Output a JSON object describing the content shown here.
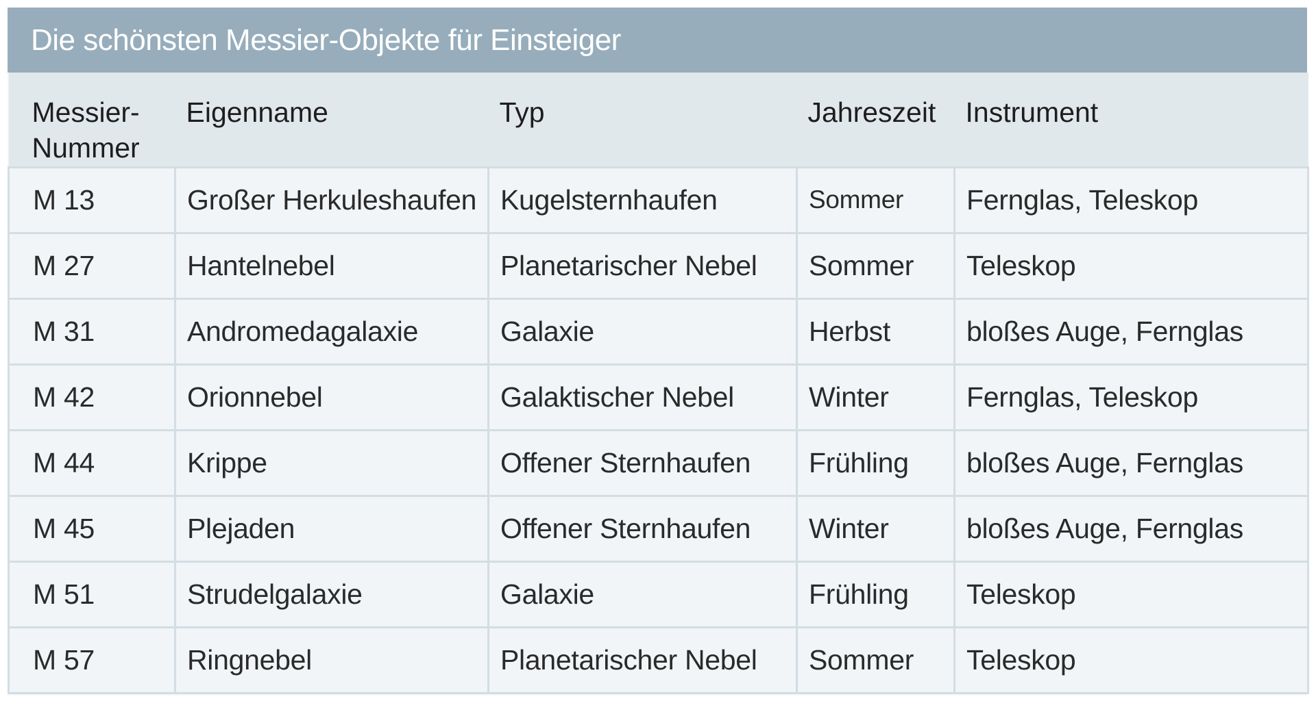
{
  "title": "Die schönsten Messier-Objekte für Einsteiger",
  "columns": [
    "Messier-\nNummer",
    "Eigenname",
    "Typ",
    "Jahreszeit",
    "Instrument"
  ],
  "rows": [
    [
      "M 13",
      "Großer Herkuleshaufen",
      "Kugelsternhaufen",
      "Sommer",
      "Fernglas, Teleskop"
    ],
    [
      "M 27",
      "Hantelnebel",
      "Planetarischer Nebel",
      "Sommer",
      "Teleskop"
    ],
    [
      "M 31",
      "Andromedagalaxie",
      "Galaxie",
      "Herbst",
      "bloßes Auge, Fernglas"
    ],
    [
      "M 42",
      "Orionnebel",
      "Galaktischer Nebel",
      "Winter",
      "Fernglas, Teleskop"
    ],
    [
      "M 44",
      "Krippe",
      "Offener Sternhaufen",
      "Frühling",
      "bloßes Auge, Fernglas"
    ],
    [
      "M 45",
      "Plejaden",
      "Offener Sternhaufen",
      "Winter",
      "bloßes Auge, Fernglas"
    ],
    [
      "M 51",
      "Strudelgalaxie",
      "Galaxie",
      "Frühling",
      "Teleskop"
    ],
    [
      "M 57",
      "Ringnebel",
      "Planetarischer Nebel",
      "Sommer",
      "Teleskop"
    ]
  ],
  "colors": {
    "title_bar": "#97adbb",
    "header_row": "#e1e8ec",
    "body": "#f1f5f7",
    "grid": "#d3dde3"
  }
}
